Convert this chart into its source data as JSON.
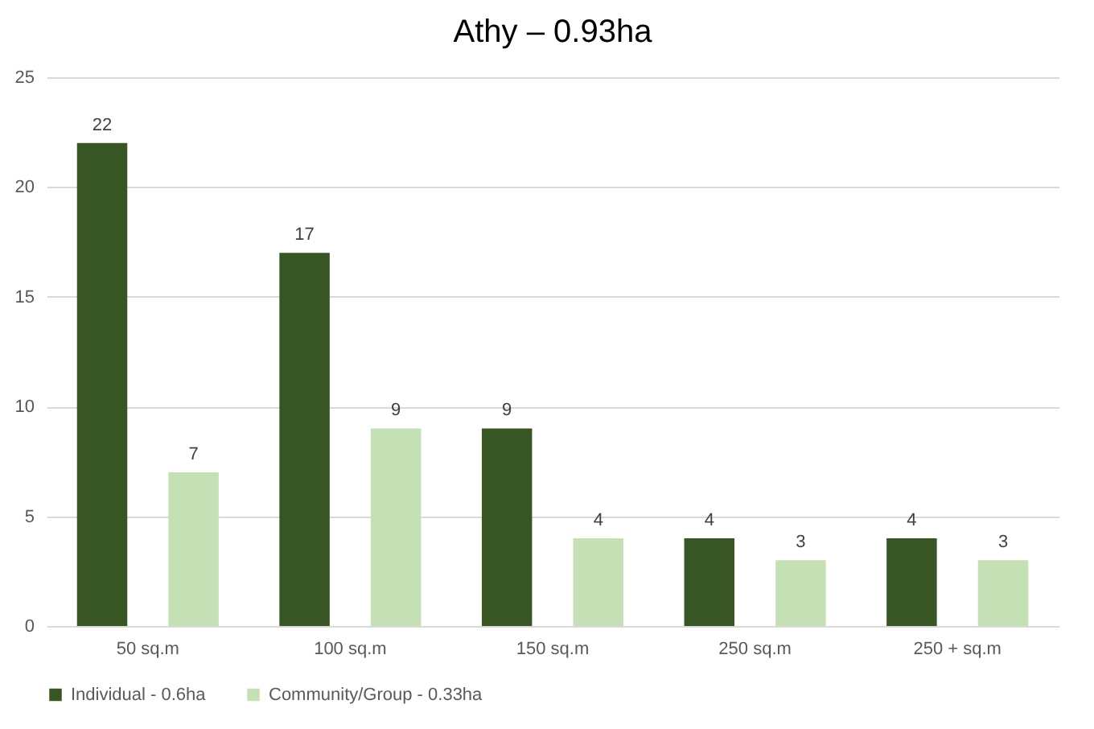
{
  "chart_data": {
    "type": "bar",
    "title": "Athy – 0.93ha",
    "categories": [
      "50 sq.m",
      "100 sq.m",
      "150 sq.m",
      "250 sq.m",
      "250 + sq.m"
    ],
    "series": [
      {
        "name": "Individual - 0.6ha",
        "color": "#375623",
        "values": [
          22,
          17,
          9,
          4,
          4
        ]
      },
      {
        "name": "Community/Group - 0.33ha",
        "color": "#c5e0b4",
        "values": [
          7,
          9,
          4,
          3,
          3
        ]
      }
    ],
    "ylim": [
      0,
      25
    ],
    "yticks": [
      0,
      5,
      10,
      15,
      20,
      25
    ],
    "grid": "y",
    "legend": "bottom",
    "data_labels": true
  }
}
